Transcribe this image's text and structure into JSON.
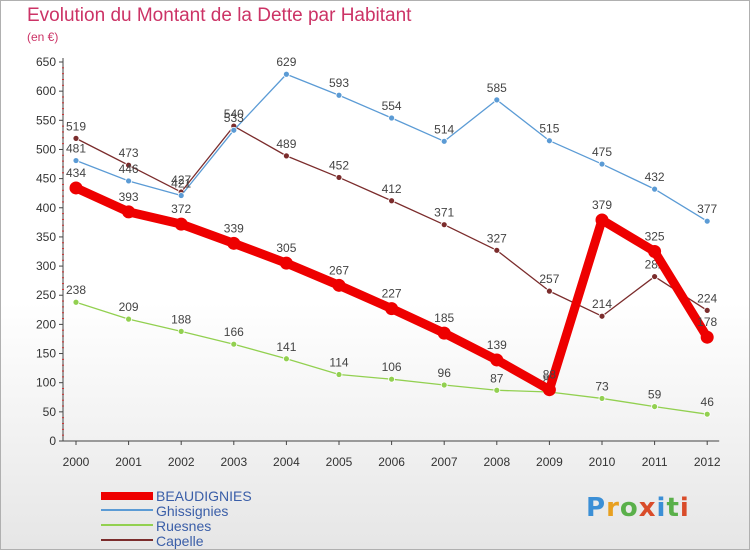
{
  "header": {
    "title": "Evolution du Montant de la Dette par Habitant",
    "subtitle": "(en €)"
  },
  "logo": {
    "text": "Proxiti",
    "colors": [
      "#3b8fd6",
      "#e8a020",
      "#5ab04a",
      "#d94c2a",
      "#3b8fd6",
      "#5ab04a",
      "#d94c2a"
    ]
  },
  "chart_data": {
    "type": "line",
    "x": [
      "2000",
      "2001",
      "2002",
      "2003",
      "2004",
      "2005",
      "2006",
      "2007",
      "2008",
      "2009",
      "2010",
      "2011",
      "2012"
    ],
    "ylim": [
      0,
      650
    ],
    "yticks": [
      0,
      50,
      100,
      150,
      200,
      250,
      300,
      350,
      400,
      450,
      500,
      550,
      600,
      650
    ],
    "grid": false,
    "legend": "bottom-left",
    "series": [
      {
        "name": "BEAUDIGNIES",
        "color": "#ee0000",
        "values": [
          434,
          393,
          372,
          339,
          305,
          267,
          227,
          185,
          139,
          88,
          379,
          325,
          178
        ]
      },
      {
        "name": "Ghissignies",
        "color": "#5b9bd5",
        "values": [
          481,
          446,
          421,
          533,
          629,
          593,
          554,
          514,
          585,
          515,
          475,
          432,
          377
        ]
      },
      {
        "name": "Ruesnes",
        "color": "#92d050",
        "values": [
          238,
          209,
          188,
          166,
          141,
          114,
          106,
          96,
          87,
          84,
          73,
          59,
          46
        ]
      },
      {
        "name": "Capelle",
        "color": "#7b2c2c",
        "values": [
          519,
          473,
          427,
          540,
          489,
          452,
          412,
          371,
          327,
          257,
          214,
          282,
          224
        ]
      }
    ]
  }
}
